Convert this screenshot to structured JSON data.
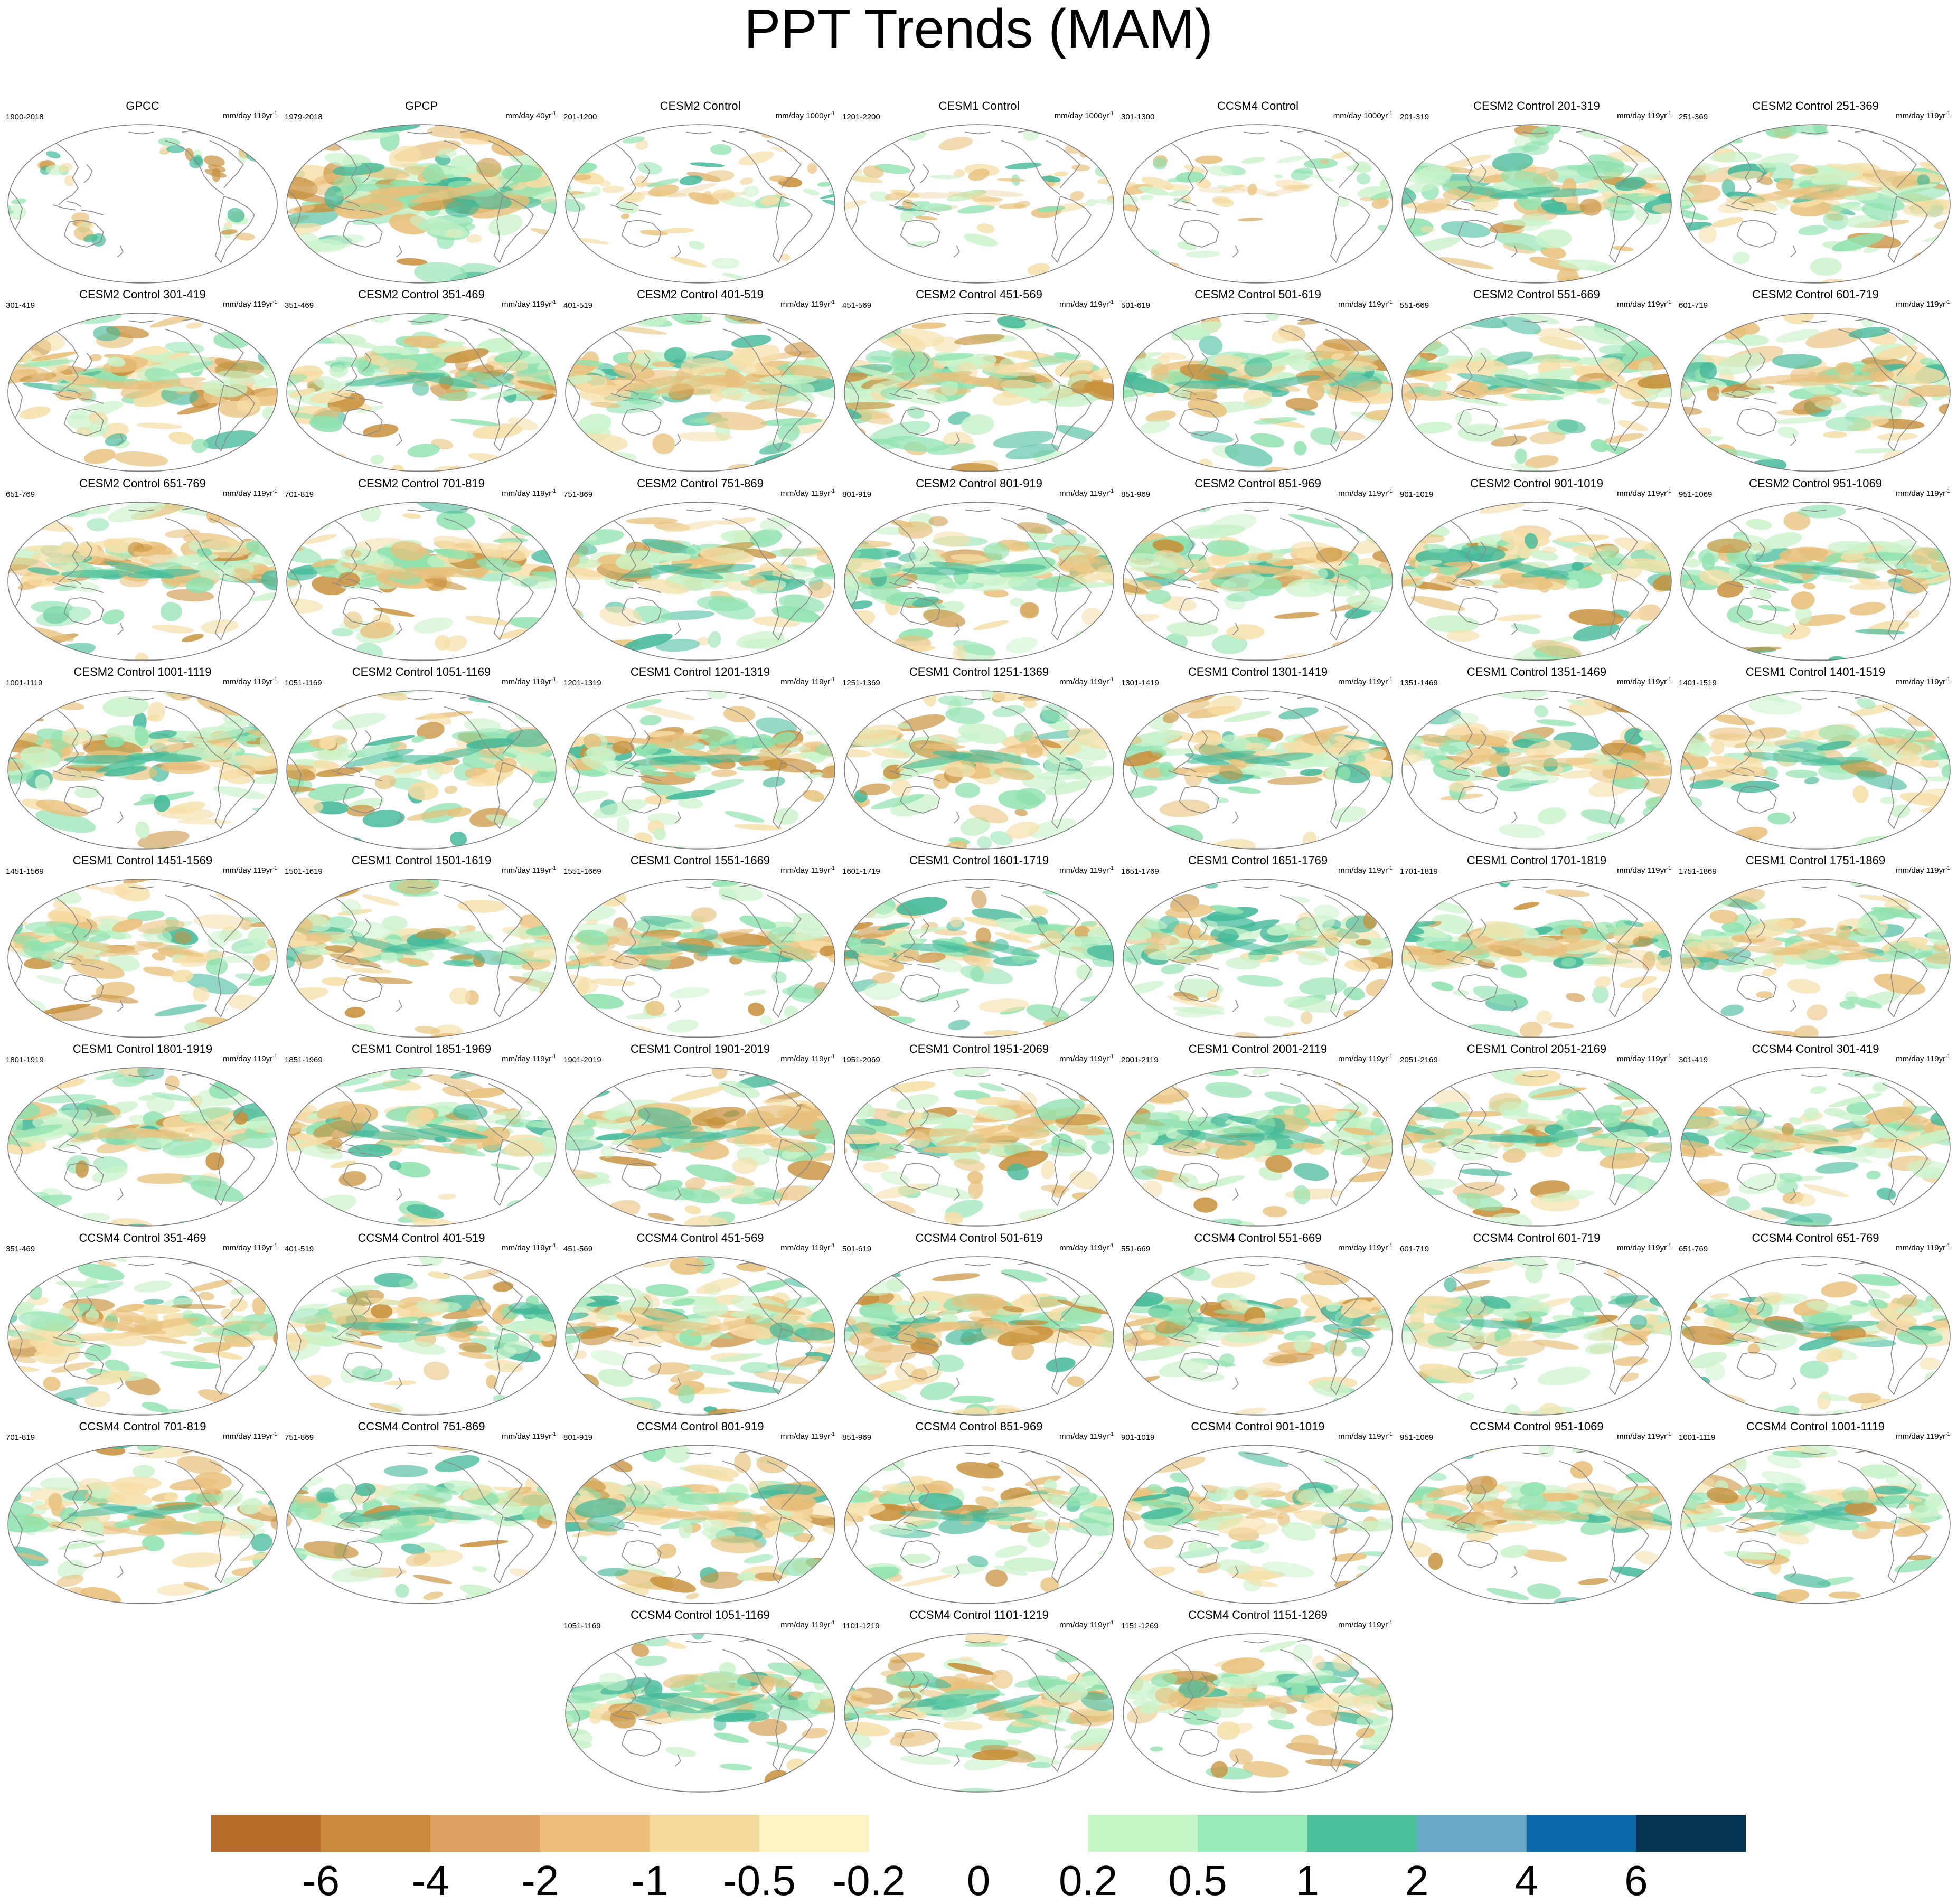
{
  "title": "PPT Trends (MAM)",
  "colors": {
    "coast": "#8a8a8a",
    "frame": "#7a7a7a",
    "dry_strong": "#c8913c",
    "dry": "#e8c07a",
    "dry_light": "#f6dea7",
    "wet_light": "#c9f3c9",
    "wet": "#8fe2ae",
    "wet_strong": "#43b99a"
  },
  "chart_data": {
    "type": "heatmap",
    "title": "PPT Trends (MAM)",
    "projection": "Robinson (Pacific-centered)",
    "colorbar": {
      "levels": [
        "-6",
        "-4",
        "-2",
        "-1",
        "-0.5",
        "-0.2",
        "0",
        "0.2",
        "0.5",
        "1",
        "2",
        "4",
        "6"
      ],
      "colors": [
        "#b76b2a",
        "#cb8a3f",
        "#dea162",
        "#eebf7b",
        "#f3d99c",
        "#fdf2c2",
        "#ffffff",
        "#ffffff",
        "#c6f6c6",
        "#97ebb6",
        "#4cbf9c",
        "#6aa9c8",
        "#0d6aa8",
        "#04344f"
      ]
    },
    "panels": [
      {
        "title": "GPCC",
        "years": "1900-2018",
        "units": "mm/day 119yr",
        "sup": "-1",
        "intensity": 0.45,
        "land_only": true
      },
      {
        "title": "GPCP",
        "years": "1979-2018",
        "units": "mm/day 40yr",
        "sup": "-1",
        "intensity": 1.0
      },
      {
        "title": "CESM2 Control",
        "years": "201-1200",
        "units": "mm/day 1000yr",
        "sup": "-1",
        "intensity": 0.2
      },
      {
        "title": "CESM1 Control",
        "years": "1201-2200",
        "units": "mm/day 1000yr",
        "sup": "-1",
        "intensity": 0.2
      },
      {
        "title": "CCSM4 Control",
        "years": "301-1300",
        "units": "mm/day 1000yr",
        "sup": "-1",
        "intensity": 0.15
      },
      {
        "title": "CESM2 Control 201-319",
        "years": "201-319",
        "units": "mm/day 119yr",
        "sup": "-1",
        "intensity": 0.7
      },
      {
        "title": "CESM2 Control 251-369",
        "years": "251-369",
        "units": "mm/day 119yr",
        "sup": "-1",
        "intensity": 0.7
      },
      {
        "title": "CESM2 Control 301-419",
        "years": "301-419",
        "units": "mm/day 119yr",
        "sup": "-1",
        "intensity": 0.7
      },
      {
        "title": "CESM2 Control 351-469",
        "years": "351-469",
        "units": "mm/day 119yr",
        "sup": "-1",
        "intensity": 0.7
      },
      {
        "title": "CESM2 Control 401-519",
        "years": "401-519",
        "units": "mm/day 119yr",
        "sup": "-1",
        "intensity": 0.8
      },
      {
        "title": "CESM2 Control 451-569",
        "years": "451-569",
        "units": "mm/day 119yr",
        "sup": "-1",
        "intensity": 0.8
      },
      {
        "title": "CESM2 Control 501-619",
        "years": "501-619",
        "units": "mm/day 119yr",
        "sup": "-1",
        "intensity": 0.75
      },
      {
        "title": "CESM2 Control 551-669",
        "years": "551-669",
        "units": "mm/day 119yr",
        "sup": "-1",
        "intensity": 0.7
      },
      {
        "title": "CESM2 Control 601-719",
        "years": "601-719",
        "units": "mm/day 119yr",
        "sup": "-1",
        "intensity": 0.7
      },
      {
        "title": "CESM2 Control 651-769",
        "years": "651-769",
        "units": "mm/day 119yr",
        "sup": "-1",
        "intensity": 0.7
      },
      {
        "title": "CESM2 Control 701-819",
        "years": "701-819",
        "units": "mm/day 119yr",
        "sup": "-1",
        "intensity": 0.7
      },
      {
        "title": "CESM2 Control 751-869",
        "years": "751-869",
        "units": "mm/day 119yr",
        "sup": "-1",
        "intensity": 0.7
      },
      {
        "title": "CESM2 Control 801-919",
        "years": "801-919",
        "units": "mm/day 119yr",
        "sup": "-1",
        "intensity": 0.7
      },
      {
        "title": "CESM2 Control 851-969",
        "years": "851-969",
        "units": "mm/day 119yr",
        "sup": "-1",
        "intensity": 0.75
      },
      {
        "title": "CESM2 Control 901-1019",
        "years": "901-1019",
        "units": "mm/day 119yr",
        "sup": "-1",
        "intensity": 0.7
      },
      {
        "title": "CESM2 Control 951-1069",
        "years": "951-1069",
        "units": "mm/day 119yr",
        "sup": "-1",
        "intensity": 0.65
      },
      {
        "title": "CESM2 Control 1001-1119",
        "years": "1001-1119",
        "units": "mm/day 119yr",
        "sup": "-1",
        "intensity": 0.8
      },
      {
        "title": "CESM2 Control 1051-1169",
        "years": "1051-1169",
        "units": "mm/day 119yr",
        "sup": "-1",
        "intensity": 0.7
      },
      {
        "title": "CESM1 Control 1201-1319",
        "years": "1201-1319",
        "units": "mm/day 119yr",
        "sup": "-1",
        "intensity": 0.65
      },
      {
        "title": "CESM1 Control 1251-1369",
        "years": "1251-1369",
        "units": "mm/day 119yr",
        "sup": "-1",
        "intensity": 0.7
      },
      {
        "title": "CESM1 Control 1301-1419",
        "years": "1301-1419",
        "units": "mm/day 119yr",
        "sup": "-1",
        "intensity": 0.65
      },
      {
        "title": "CESM1 Control 1351-1469",
        "years": "1351-1469",
        "units": "mm/day 119yr",
        "sup": "-1",
        "intensity": 0.6
      },
      {
        "title": "CESM1 Control 1401-1519",
        "years": "1401-1519",
        "units": "mm/day 119yr",
        "sup": "-1",
        "intensity": 0.6
      },
      {
        "title": "CESM1 Control 1451-1569",
        "years": "1451-1569",
        "units": "mm/day 119yr",
        "sup": "-1",
        "intensity": 0.65
      },
      {
        "title": "CESM1 Control 1501-1619",
        "years": "1501-1619",
        "units": "mm/day 119yr",
        "sup": "-1",
        "intensity": 0.65
      },
      {
        "title": "CESM1 Control 1551-1669",
        "years": "1551-1669",
        "units": "mm/day 119yr",
        "sup": "-1",
        "intensity": 0.65
      },
      {
        "title": "CESM1 Control 1601-1719",
        "years": "1601-1719",
        "units": "mm/day 119yr",
        "sup": "-1",
        "intensity": 0.65
      },
      {
        "title": "CESM1 Control 1651-1769",
        "years": "1651-1769",
        "units": "mm/day 119yr",
        "sup": "-1",
        "intensity": 0.65
      },
      {
        "title": "CESM1 Control 1701-1819",
        "years": "1701-1819",
        "units": "mm/day 119yr",
        "sup": "-1",
        "intensity": 0.7
      },
      {
        "title": "CESM1 Control 1751-1869",
        "years": "1751-1869",
        "units": "mm/day 119yr",
        "sup": "-1",
        "intensity": 0.6
      },
      {
        "title": "CESM1 Control 1801-1919",
        "years": "1801-1919",
        "units": "mm/day 119yr",
        "sup": "-1",
        "intensity": 0.7
      },
      {
        "title": "CESM1 Control 1851-1969",
        "years": "1851-1969",
        "units": "mm/day 119yr",
        "sup": "-1",
        "intensity": 0.7
      },
      {
        "title": "CESM1 Control 1901-2019",
        "years": "1901-2019",
        "units": "mm/day 119yr",
        "sup": "-1",
        "intensity": 0.7
      },
      {
        "title": "CESM1 Control 1951-2069",
        "years": "1951-2069",
        "units": "mm/day 119yr",
        "sup": "-1",
        "intensity": 0.7
      },
      {
        "title": "CESM1 Control 2001-2119",
        "years": "2001-2119",
        "units": "mm/day 119yr",
        "sup": "-1",
        "intensity": 0.7
      },
      {
        "title": "CESM1 Control 2051-2169",
        "years": "2051-2169",
        "units": "mm/day 119yr",
        "sup": "-1",
        "intensity": 0.65
      },
      {
        "title": "CCSM4 Control 301-419",
        "years": "301-419",
        "units": "mm/day 119yr",
        "sup": "-1",
        "intensity": 0.65
      },
      {
        "title": "CCSM4 Control 351-469",
        "years": "351-469",
        "units": "mm/day 119yr",
        "sup": "-1",
        "intensity": 0.7
      },
      {
        "title": "CCSM4 Control 401-519",
        "years": "401-519",
        "units": "mm/day 119yr",
        "sup": "-1",
        "intensity": 0.65
      },
      {
        "title": "CCSM4 Control 451-569",
        "years": "451-569",
        "units": "mm/day 119yr",
        "sup": "-1",
        "intensity": 0.7
      },
      {
        "title": "CCSM4 Control 501-619",
        "years": "501-619",
        "units": "mm/day 119yr",
        "sup": "-1",
        "intensity": 0.7
      },
      {
        "title": "CCSM4 Control 551-669",
        "years": "551-669",
        "units": "mm/day 119yr",
        "sup": "-1",
        "intensity": 0.65
      },
      {
        "title": "CCSM4 Control 601-719",
        "years": "601-719",
        "units": "mm/day 119yr",
        "sup": "-1",
        "intensity": 0.65
      },
      {
        "title": "CCSM4 Control 651-769",
        "years": "651-769",
        "units": "mm/day 119yr",
        "sup": "-1",
        "intensity": 0.6
      },
      {
        "title": "CCSM4 Control 701-819",
        "years": "701-819",
        "units": "mm/day 119yr",
        "sup": "-1",
        "intensity": 0.65
      },
      {
        "title": "CCSM4 Control 751-869",
        "years": "751-869",
        "units": "mm/day 119yr",
        "sup": "-1",
        "intensity": 0.65
      },
      {
        "title": "CCSM4 Control 801-919",
        "years": "801-919",
        "units": "mm/day 119yr",
        "sup": "-1",
        "intensity": 0.75
      },
      {
        "title": "CCSM4 Control 851-969",
        "years": "851-969",
        "units": "mm/day 119yr",
        "sup": "-1",
        "intensity": 0.6
      },
      {
        "title": "CCSM4 Control 901-1019",
        "years": "901-1019",
        "units": "mm/day 119yr",
        "sup": "-1",
        "intensity": 0.6
      },
      {
        "title": "CCSM4 Control 951-1069",
        "years": "951-1069",
        "units": "mm/day 119yr",
        "sup": "-1",
        "intensity": 0.6
      },
      {
        "title": "CCSM4 Control 1001-1119",
        "years": "1001-1119",
        "units": "mm/day 119yr",
        "sup": "-1",
        "intensity": 0.6
      },
      {
        "title": "CCSM4 Control 1051-1169",
        "years": "1051-1169",
        "units": "mm/day 119yr",
        "sup": "-1",
        "intensity": 0.65
      },
      {
        "title": "CCSM4 Control 1101-1219",
        "years": "1101-1219",
        "units": "mm/day 119yr",
        "sup": "-1",
        "intensity": 0.65
      },
      {
        "title": "CCSM4 Control 1151-1269",
        "years": "1151-1269",
        "units": "mm/day 119yr",
        "sup": "-1",
        "intensity": 0.65
      }
    ]
  }
}
